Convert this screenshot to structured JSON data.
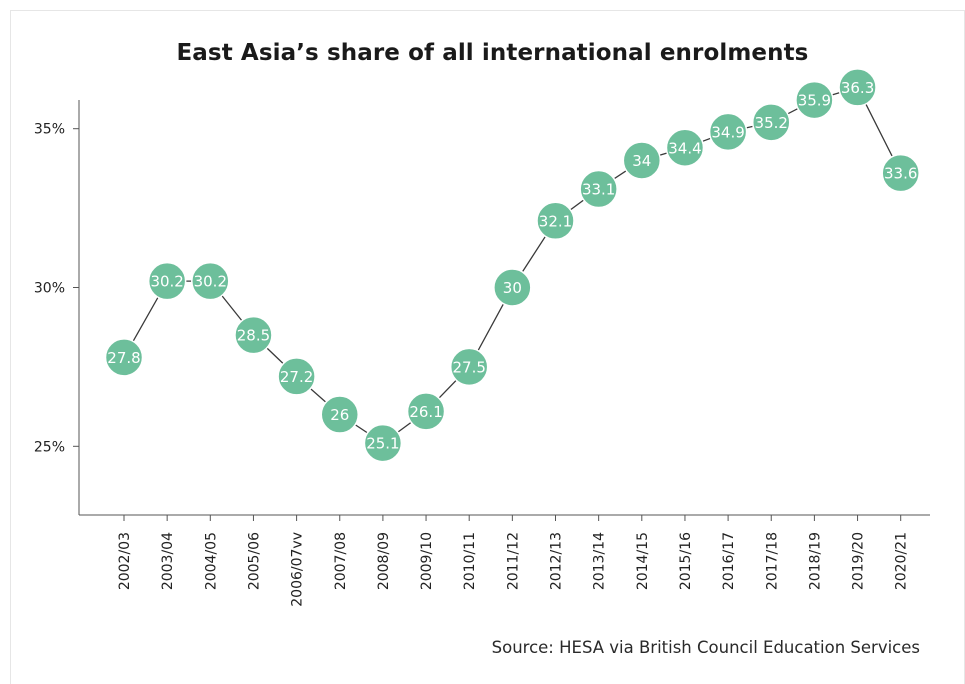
{
  "chart_data": {
    "type": "line",
    "title": "East Asia’s share of all international enrolments",
    "xlabel": "",
    "ylabel": "",
    "categories": [
      "2002/03",
      "2003/04",
      "2004/05",
      "2005/06",
      "2006/07vv",
      "2007/08",
      "2008/09",
      "2009/10",
      "2010/11",
      "2011/12",
      "2012/13",
      "2013/14",
      "2014/15",
      "2015/16",
      "2016/17",
      "2017/18",
      "2018/19",
      "2019/20",
      "2020/21"
    ],
    "values": [
      27.8,
      30.2,
      30.2,
      28.5,
      27.2,
      26,
      25.1,
      26.1,
      27.5,
      30,
      32.1,
      33.1,
      34,
      34.4,
      34.9,
      35.2,
      35.9,
      36.3,
      33.6
    ],
    "data_labels": [
      "27.8",
      "30.2",
      "30.2",
      "28.5",
      "27.2",
      "26",
      "25.1",
      "26.1",
      "27.5",
      "30",
      "32.1",
      "33.1",
      "34",
      "34.4",
      "34.9",
      "35.2",
      "35.9",
      "36.3",
      "33.6"
    ],
    "yticks": [
      25,
      30,
      35
    ],
    "ytick_labels": [
      "25%",
      "30%",
      "35%"
    ],
    "ylim": [
      22.9,
      37.1
    ],
    "grid": false,
    "legend": "none",
    "marker_color": "#6dbf9b",
    "line_color": "#3a3a3a",
    "source": "Source: HESA via British Council Education Services"
  }
}
